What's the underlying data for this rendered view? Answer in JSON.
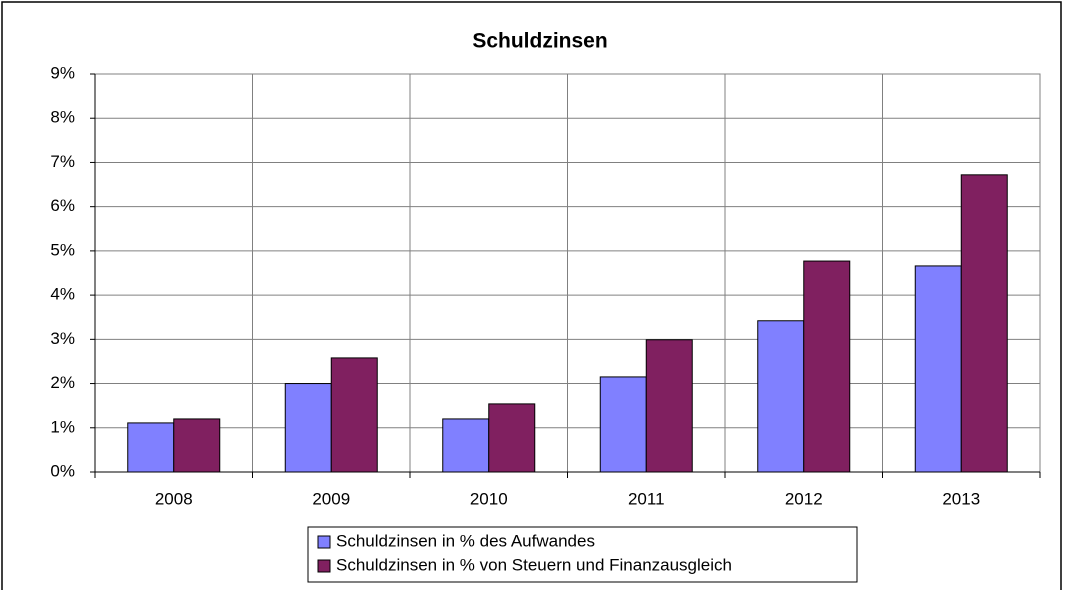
{
  "chart_data": {
    "type": "bar",
    "title": "Schuldzinsen",
    "categories": [
      "2008",
      "2009",
      "2010",
      "2011",
      "2012",
      "2013"
    ],
    "series": [
      {
        "name": "Schuldzinsen in % des Aufwandes",
        "color": "#8080ff",
        "values": [
          1.11,
          2.0,
          1.2,
          2.15,
          3.42,
          4.66
        ]
      },
      {
        "name": "Schuldzinsen in % von Steuern und Finanzausgleich",
        "color": "#802060",
        "values": [
          1.2,
          2.58,
          1.54,
          2.99,
          4.77,
          6.72
        ]
      }
    ],
    "ylim": [
      0,
      9
    ],
    "yticks": [
      {
        "value": 0,
        "label": "0%"
      },
      {
        "value": 1,
        "label": "1%"
      },
      {
        "value": 2,
        "label": "2%"
      },
      {
        "value": 3,
        "label": "3%"
      },
      {
        "value": 4,
        "label": "4%"
      },
      {
        "value": 5,
        "label": "5%"
      },
      {
        "value": 6,
        "label": "6%"
      },
      {
        "value": 7,
        "label": "7%"
      },
      {
        "value": 8,
        "label": "8%"
      },
      {
        "value": 9,
        "label": "9%"
      }
    ],
    "grid": true,
    "legend": "bottom"
  }
}
